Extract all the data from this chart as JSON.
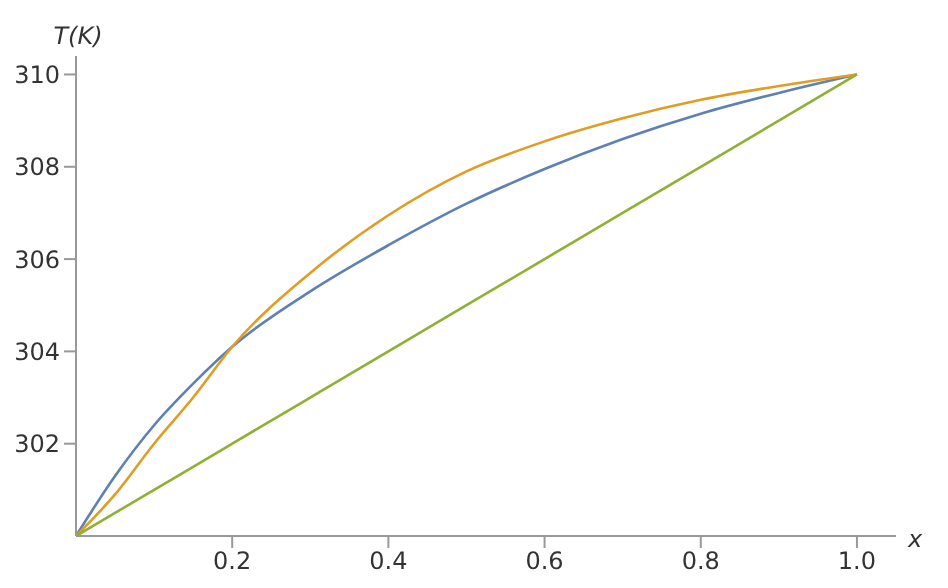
{
  "chart_data": {
    "type": "line",
    "xlabel": "x",
    "ylabel": "T(K)",
    "x": [
      0,
      0.05,
      0.1,
      0.15,
      0.2,
      0.3,
      0.4,
      0.5,
      0.6,
      0.7,
      0.8,
      0.9,
      1.0
    ],
    "series": [
      {
        "color": "#5e81b5",
        "values": [
          300,
          301.3,
          302.4,
          303.3,
          304.1,
          305.3,
          306.3,
          307.2,
          307.95,
          308.6,
          309.15,
          309.6,
          310
        ]
      },
      {
        "color": "#e19c24",
        "values": [
          300,
          300.9,
          302.0,
          303.0,
          304.1,
          305.7,
          306.95,
          307.9,
          308.55,
          309.05,
          309.45,
          309.75,
          310
        ]
      },
      {
        "color": "#8fb032",
        "values": [
          300,
          300.5,
          301,
          301.5,
          302,
          303,
          304,
          305,
          306,
          307,
          308,
          309,
          310
        ]
      }
    ],
    "xlim": [
      0,
      1.05
    ],
    "ylim": [
      300,
      310.4
    ],
    "xticks": [
      0.2,
      0.4,
      0.6,
      0.8,
      {
        "value": 1.0,
        "label": "1.0"
      }
    ],
    "yticks": [
      302,
      304,
      306,
      308,
      310
    ],
    "grid": false,
    "legend": false,
    "marker": "none",
    "line_style": "solid"
  }
}
